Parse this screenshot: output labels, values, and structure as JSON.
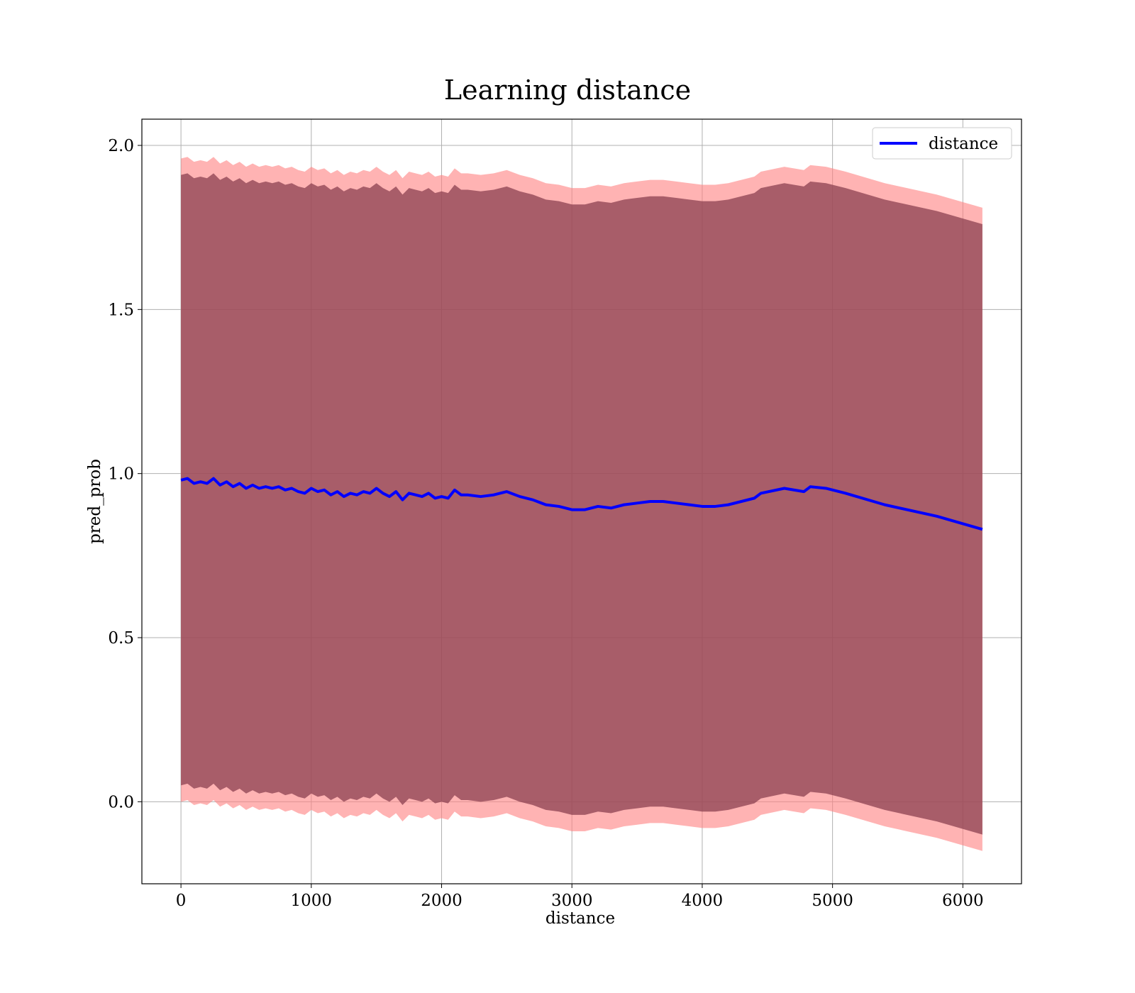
{
  "chart_data": {
    "type": "area",
    "title": "Learning distance",
    "xlabel": "distance",
    "ylabel": "pred_prob",
    "xlim": [
      -300,
      6450
    ],
    "ylim": [
      -0.25,
      2.08
    ],
    "xticks": [
      0,
      1000,
      2000,
      3000,
      4000,
      5000,
      6000
    ],
    "yticks": [
      0.0,
      0.5,
      1.0,
      1.5,
      2.0
    ],
    "xtick_labels": [
      "0",
      "1000",
      "2000",
      "3000",
      "4000",
      "5000",
      "6000"
    ],
    "ytick_labels": [
      "0.0",
      "0.5",
      "1.0",
      "1.5",
      "2.0"
    ],
    "grid": true,
    "legend": {
      "position": "top-right",
      "entries": [
        {
          "label": "distance",
          "color": "#0000ff"
        }
      ]
    },
    "colors": {
      "line": "#0000ff",
      "outer_band": "#ff8080",
      "inner_band": "#8b4050"
    },
    "series": [
      {
        "name": "distance",
        "x": [
          0,
          50,
          100,
          150,
          200,
          250,
          300,
          350,
          400,
          450,
          500,
          550,
          600,
          650,
          700,
          750,
          800,
          850,
          900,
          950,
          1000,
          1050,
          1100,
          1150,
          1200,
          1250,
          1300,
          1350,
          1400,
          1450,
          1500,
          1550,
          1600,
          1650,
          1700,
          1750,
          1800,
          1850,
          1900,
          1950,
          2000,
          2050,
          2100,
          2150,
          2200,
          2300,
          2400,
          2500,
          2600,
          2700,
          2800,
          2900,
          3000,
          3100,
          3200,
          3300,
          3400,
          3500,
          3600,
          3700,
          3800,
          3900,
          4000,
          4100,
          4200,
          4300,
          4400,
          4450,
          4630,
          4780,
          4830,
          4950,
          5100,
          5400,
          5800,
          6150
        ],
        "y": [
          0.98,
          0.985,
          0.97,
          0.975,
          0.97,
          0.985,
          0.965,
          0.975,
          0.96,
          0.97,
          0.955,
          0.965,
          0.955,
          0.96,
          0.955,
          0.96,
          0.95,
          0.955,
          0.945,
          0.94,
          0.955,
          0.945,
          0.95,
          0.935,
          0.945,
          0.93,
          0.94,
          0.935,
          0.945,
          0.94,
          0.955,
          0.94,
          0.93,
          0.945,
          0.92,
          0.94,
          0.935,
          0.93,
          0.94,
          0.925,
          0.93,
          0.925,
          0.95,
          0.935,
          0.935,
          0.93,
          0.935,
          0.945,
          0.93,
          0.92,
          0.905,
          0.9,
          0.89,
          0.89,
          0.9,
          0.895,
          0.905,
          0.91,
          0.915,
          0.915,
          0.91,
          0.905,
          0.9,
          0.9,
          0.905,
          0.915,
          0.925,
          0.94,
          0.955,
          0.945,
          0.96,
          0.955,
          0.94,
          0.905,
          0.87,
          0.83
        ]
      }
    ],
    "bands": [
      {
        "name": "outer",
        "offset": 0.98
      },
      {
        "name": "inner",
        "offset": 0.93
      }
    ]
  }
}
